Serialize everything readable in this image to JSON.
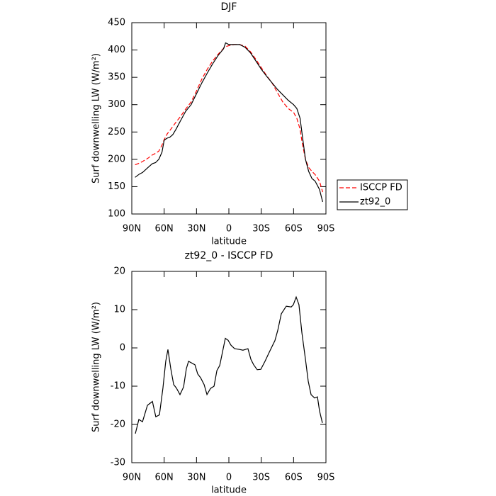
{
  "chart_data": [
    {
      "type": "line",
      "title": "DJF",
      "xlabel": "latitude",
      "ylabel": "Surf downwelling LW (W/m²)",
      "x": [
        87,
        83,
        80,
        75,
        71,
        68,
        65,
        62,
        60,
        57,
        55,
        52,
        49,
        45,
        40,
        35,
        30,
        25,
        20,
        15,
        10,
        5,
        3,
        0,
        -5,
        -10,
        -15,
        -20,
        -25,
        -30,
        -35,
        -40,
        -45,
        -50,
        -55,
        -60,
        -63,
        -66,
        -68,
        -71,
        -74,
        -77,
        -80,
        -84,
        -87
      ],
      "series": [
        {
          "name": "ISCCP FD",
          "color": "#ff0000",
          "style": "dashed",
          "values": [
            190,
            193,
            196,
            202,
            208,
            211,
            215,
            226,
            236,
            247,
            252,
            260,
            268,
            278,
            292,
            305,
            325,
            347,
            365,
            380,
            392,
            403,
            406,
            408,
            410,
            410,
            407,
            397,
            383,
            368,
            353,
            340,
            322,
            305,
            293,
            286,
            275,
            255,
            230,
            200,
            185,
            178,
            172,
            160,
            140
          ]
        },
        {
          "name": "zt92_0",
          "color": "#000000",
          "style": "solid",
          "values": [
            167,
            173,
            176,
            185,
            192,
            194,
            200,
            213,
            235,
            239,
            240,
            245,
            255,
            270,
            288,
            300,
            320,
            340,
            358,
            375,
            390,
            402,
            413,
            410,
            410,
            410,
            405,
            395,
            380,
            365,
            352,
            340,
            328,
            318,
            308,
            300,
            293,
            275,
            245,
            200,
            178,
            165,
            160,
            145,
            122
          ]
        }
      ],
      "xlim": [
        90,
        -90
      ],
      "xticks": [
        {
          "value": 90,
          "label": "90N"
        },
        {
          "value": 60,
          "label": "60N"
        },
        {
          "value": 30,
          "label": "30N"
        },
        0,
        {
          "value": -30,
          "label": "30S"
        },
        {
          "value": -60,
          "label": "60S"
        },
        {
          "value": -90,
          "label": "90S"
        }
      ],
      "ylim": [
        100,
        450
      ],
      "yticks": [
        100,
        150,
        200,
        250,
        300,
        350,
        400,
        450
      ],
      "legend": "outside-right"
    },
    {
      "type": "line",
      "title": "zt92_0 - ISCCP FD",
      "xlabel": "latitude",
      "ylabel": "Surf downwelling LW (W/m²)",
      "x": [
        86.7,
        83.4,
        80.1,
        75.5,
        70.9,
        67.7,
        64.4,
        61.1,
        58.5,
        56.5,
        53.9,
        51.2,
        48.6,
        45.3,
        42.0,
        39.4,
        37.4,
        31.5,
        28.9,
        26.2,
        22.9,
        20.3,
        17.0,
        13.7,
        11.1,
        8.5,
        3.3,
        0.7,
        -2.0,
        -5.3,
        -9.9,
        -13.1,
        -17.7,
        -20.4,
        -23.0,
        -26.3,
        -29.6,
        -33.5,
        -37.5,
        -42.7,
        -45.3,
        -48.6,
        -53.2,
        -57.8,
        -59.8,
        -62.4,
        -65.0,
        -67.7,
        -71.0,
        -73.6,
        -76.2,
        -79.5,
        -82.1,
        -84.1,
        -86.7
      ],
      "series": [
        {
          "name": "zt92_0 - ISCCP FD",
          "color": "#000000",
          "style": "solid",
          "values": [
            -22.4,
            -18.7,
            -19.3,
            -15,
            -14,
            -18,
            -17.5,
            -10.4,
            -3.5,
            -0.4,
            -5.4,
            -9.6,
            -10.5,
            -12.2,
            -10.2,
            -5.4,
            -3.5,
            -4.4,
            -6.8,
            -7.8,
            -9.6,
            -12.2,
            -10.6,
            -10,
            -5.9,
            -4.6,
            2.5,
            2,
            0.7,
            -0.2,
            -0.4,
            -0.6,
            -0.2,
            -3,
            -4.4,
            -5.7,
            -5.6,
            -3.5,
            -1.1,
            1.9,
            4.6,
            8.9,
            10.9,
            10.7,
            11.3,
            13.3,
            11.3,
            3.9,
            -3,
            -8.7,
            -12.2,
            -13.1,
            -12.8,
            -16.5,
            -19.6
          ]
        }
      ],
      "xlim": [
        90,
        -90
      ],
      "xticks": [
        {
          "value": 90,
          "label": "90N"
        },
        {
          "value": 60,
          "label": "60N"
        },
        {
          "value": 30,
          "label": "30N"
        },
        0,
        {
          "value": -30,
          "label": "30S"
        },
        {
          "value": -60,
          "label": "60S"
        },
        {
          "value": -90,
          "label": "90S"
        }
      ],
      "ylim": [
        -30,
        20
      ],
      "yticks": [
        -30,
        -20,
        -10,
        0,
        10,
        20
      ]
    }
  ]
}
